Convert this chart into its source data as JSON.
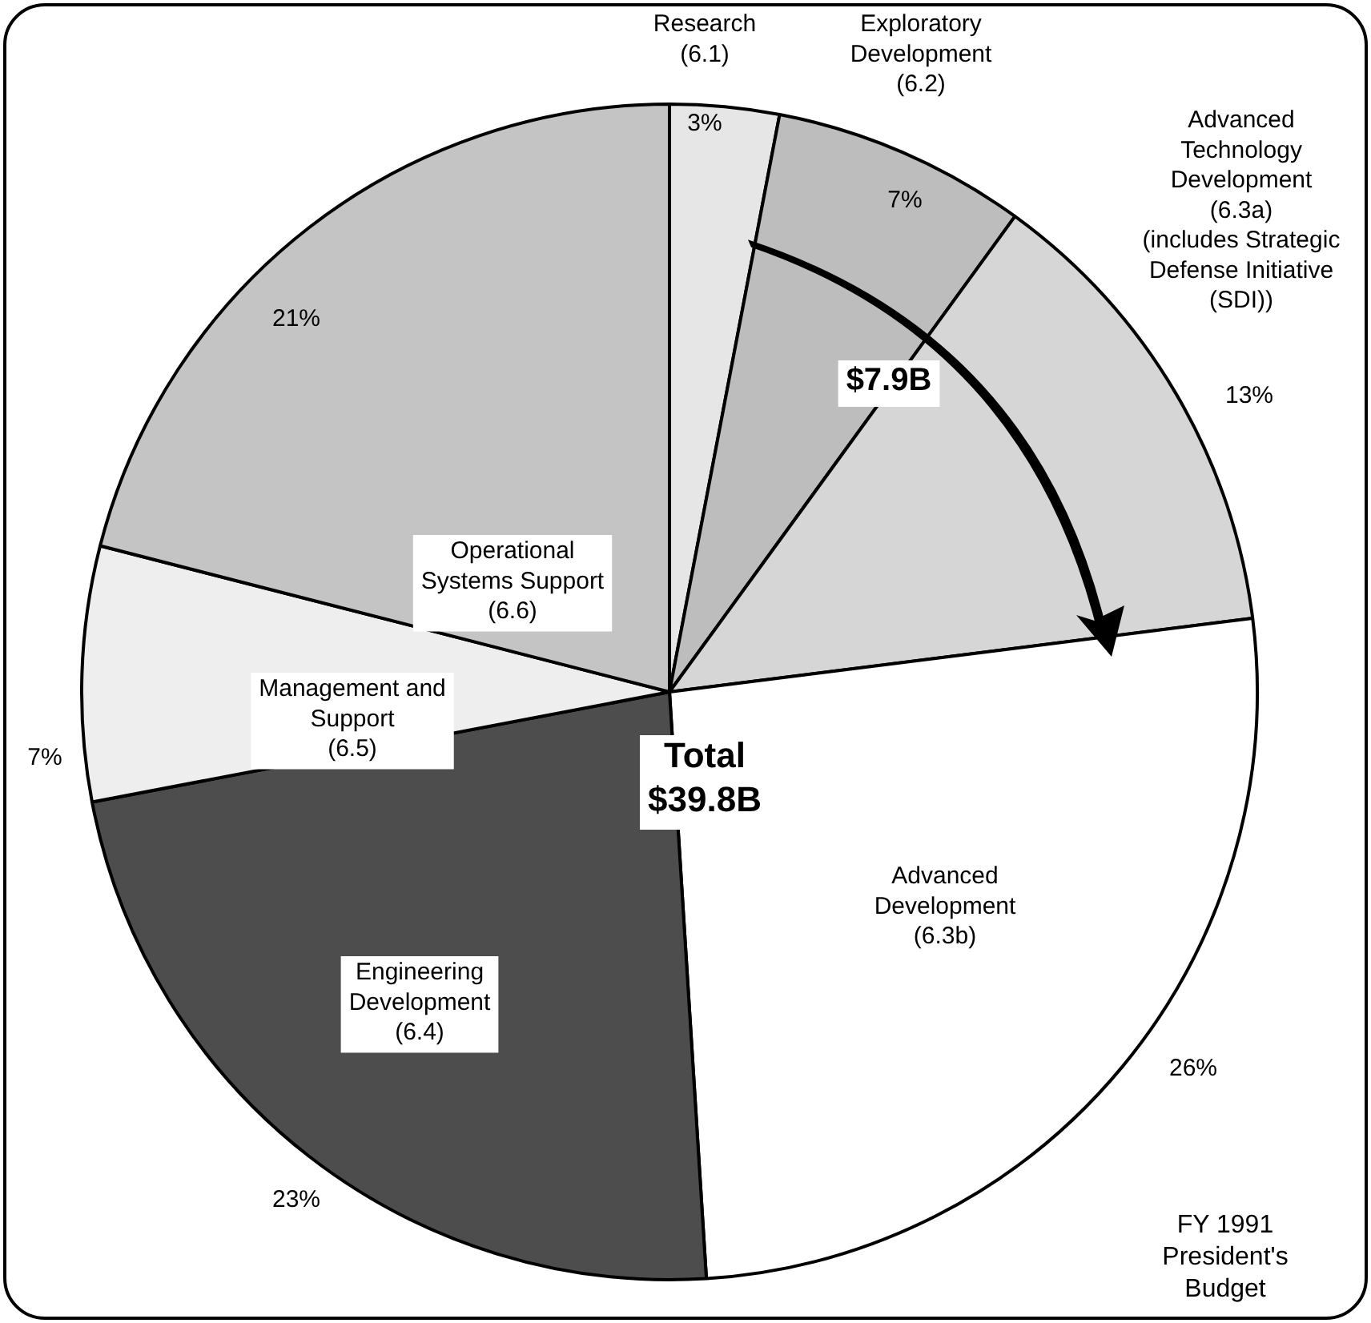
{
  "chart_data": {
    "type": "pie",
    "categories": [
      "Research\n(6.1)",
      "Exploratory\nDevelopment\n(6.2)",
      "Advanced\nTechnology\nDevelopment\n(6.3a)\n(includes Strategic\nDefense Initiative\n(SDI))",
      "Advanced\nDevelopment\n(6.3b)",
      "Engineering\nDevelopment\n(6.4)",
      "Management and\nSupport\n(6.5)",
      "Operational\nSystems Support\n(6.6)"
    ],
    "values": [
      3,
      7,
      13,
      26,
      23,
      7,
      21
    ],
    "colors": [
      "#e6e6e6",
      "#bdbdbd",
      "#d6d6d6",
      "#ffffff",
      "#4d4d4d",
      "#eeeeee",
      "#c4c4c4"
    ],
    "value_labels": [
      "3%",
      "7%",
      "13%",
      "26%",
      "23%",
      "7%",
      "21%"
    ],
    "legend": false,
    "annotations": [
      "$7.9B",
      "Total\n$39.8B",
      "FY 1991\nPresident's\nBudget"
    ]
  }
}
